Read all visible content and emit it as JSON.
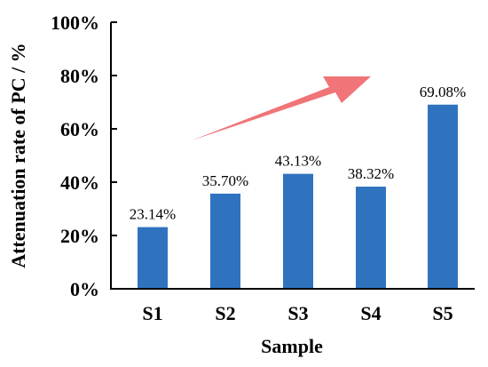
{
  "chart_data": {
    "type": "bar",
    "title": "",
    "xlabel": "Sample",
    "ylabel": "Attenuation rate of PC / %",
    "categories": [
      "S1",
      "S2",
      "S3",
      "S4",
      "S5"
    ],
    "values": [
      23.14,
      35.7,
      43.13,
      38.32,
      69.08
    ],
    "data_labels": [
      "23.14%",
      "35.70%",
      "43.13%",
      "38.32%",
      "69.08%"
    ],
    "ylim": [
      0,
      100
    ],
    "yticks": [
      0,
      20,
      40,
      60,
      80,
      100
    ],
    "ytick_labels": [
      "0%",
      "20%",
      "40%",
      "60%",
      "80%",
      "100%"
    ],
    "grid": false,
    "bar_color": "#2f73bf",
    "annotation": {
      "type": "arrow",
      "color": "#f07478",
      "direction": "up-right"
    }
  }
}
